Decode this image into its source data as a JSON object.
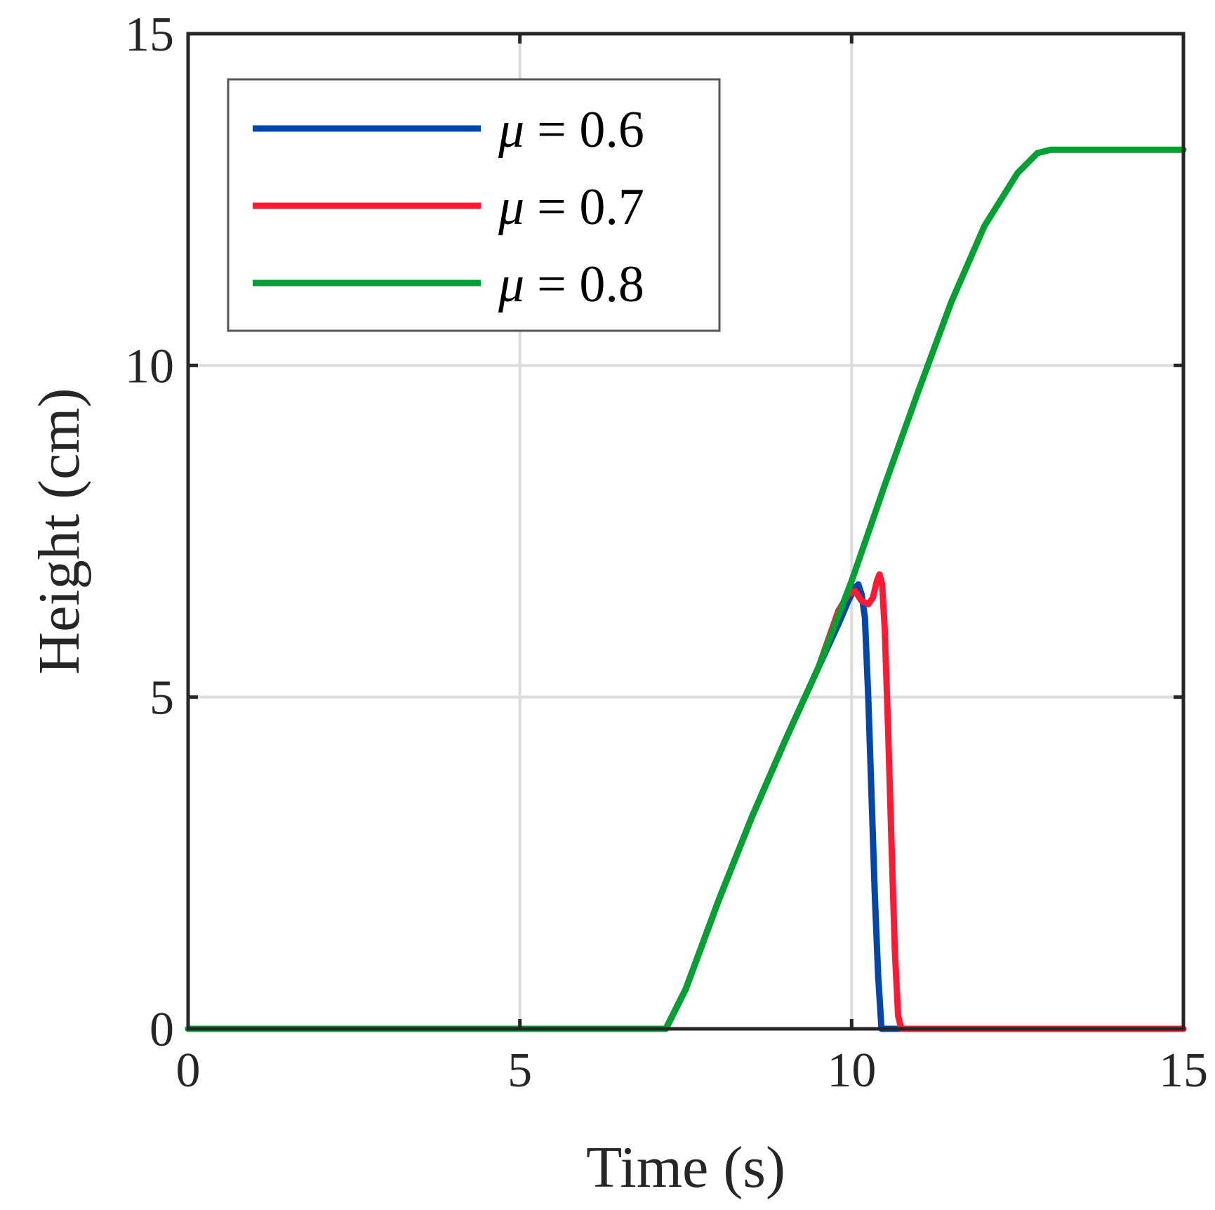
{
  "chart_data": {
    "type": "line",
    "title": "",
    "xlabel": "Time (s)",
    "ylabel": "Height (cm)",
    "xlim": [
      0,
      15
    ],
    "ylim": [
      0,
      15
    ],
    "xticks": [
      0,
      5,
      10,
      15
    ],
    "yticks": [
      0,
      5,
      10,
      15
    ],
    "xtick_labels": [
      "0",
      "5",
      "10",
      "15"
    ],
    "ytick_labels": [
      "0",
      "5",
      "10",
      "15"
    ],
    "grid": true,
    "legend_position": "top-left",
    "series": [
      {
        "name": "μ = 0.6",
        "legend_symbol": "μ",
        "legend_value": "= 0.6",
        "color": "#0047AB",
        "points": [
          [
            0,
            0
          ],
          [
            7.0,
            0
          ],
          [
            7.2,
            0
          ],
          [
            7.5,
            0.6
          ],
          [
            8.0,
            1.95
          ],
          [
            8.5,
            3.2
          ],
          [
            9.0,
            4.35
          ],
          [
            9.5,
            5.45
          ],
          [
            9.8,
            6.1
          ],
          [
            9.95,
            6.45
          ],
          [
            10.05,
            6.65
          ],
          [
            10.1,
            6.7
          ],
          [
            10.15,
            6.55
          ],
          [
            10.2,
            6.2
          ],
          [
            10.25,
            5.0
          ],
          [
            10.3,
            3.5
          ],
          [
            10.35,
            2.0
          ],
          [
            10.4,
            0.8
          ],
          [
            10.45,
            0
          ],
          [
            15,
            0
          ]
        ]
      },
      {
        "name": "μ = 0.7",
        "legend_symbol": "μ",
        "legend_value": "= 0.7",
        "color": "#FF1A33",
        "points": [
          [
            0,
            0
          ],
          [
            7.0,
            0
          ],
          [
            7.2,
            0
          ],
          [
            7.5,
            0.6
          ],
          [
            8.0,
            1.95
          ],
          [
            8.5,
            3.2
          ],
          [
            9.0,
            4.35
          ],
          [
            9.5,
            5.45
          ],
          [
            9.8,
            6.3
          ],
          [
            9.95,
            6.55
          ],
          [
            10.05,
            6.6
          ],
          [
            10.15,
            6.45
          ],
          [
            10.25,
            6.4
          ],
          [
            10.32,
            6.5
          ],
          [
            10.38,
            6.75
          ],
          [
            10.42,
            6.85
          ],
          [
            10.46,
            6.7
          ],
          [
            10.5,
            6.0
          ],
          [
            10.55,
            4.5
          ],
          [
            10.6,
            2.8
          ],
          [
            10.65,
            1.2
          ],
          [
            10.7,
            0.2
          ],
          [
            10.75,
            0
          ],
          [
            15,
            0
          ]
        ]
      },
      {
        "name": "μ = 0.8",
        "legend_symbol": "μ",
        "legend_value": "= 0.8",
        "color": "#00A032",
        "points": [
          [
            0,
            0
          ],
          [
            7.0,
            0
          ],
          [
            7.2,
            0
          ],
          [
            7.5,
            0.6
          ],
          [
            8.0,
            1.95
          ],
          [
            8.5,
            3.2
          ],
          [
            9.0,
            4.35
          ],
          [
            9.5,
            5.45
          ],
          [
            10.0,
            6.75
          ],
          [
            10.5,
            8.2
          ],
          [
            11.0,
            9.6
          ],
          [
            11.5,
            10.95
          ],
          [
            12.0,
            12.1
          ],
          [
            12.5,
            12.9
          ],
          [
            12.8,
            13.2
          ],
          [
            13.0,
            13.25
          ],
          [
            15,
            13.25
          ]
        ]
      }
    ]
  }
}
